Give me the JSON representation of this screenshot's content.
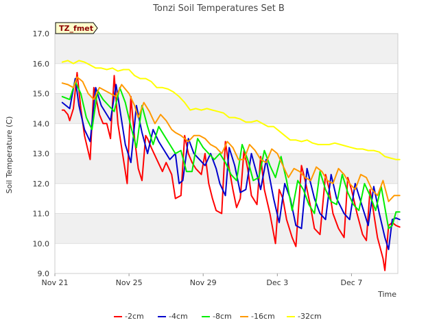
{
  "chart_data": {
    "type": "line",
    "title": "Tonzi Soil Temperatures Set B",
    "xlabel": "Time",
    "ylabel": "Soil Temperature (C)",
    "site_label": "TZ_fmet",
    "x_ticks": [
      "Nov 21",
      "Nov 25",
      "Nov 29",
      "Dec 3",
      "Dec 7"
    ],
    "x_tick_days": [
      0,
      4,
      8,
      12,
      16
    ],
    "xlim": [
      0,
      18.5
    ],
    "y_ticks": [
      "9.0",
      "10.0",
      "11.0",
      "12.0",
      "13.0",
      "14.0",
      "15.0",
      "16.0",
      "17.0"
    ],
    "ylim": [
      9.0,
      17.0
    ],
    "band_color": "#f0f0f0",
    "legend_position": "bottom",
    "series": [
      {
        "name": "-2cm",
        "color": "#ff0000",
        "x": [
          0.4,
          0.5,
          0.7,
          0.8,
          1.0,
          1.2,
          1.4,
          1.6,
          1.9,
          2.1,
          2.4,
          2.6,
          2.8,
          3.0,
          3.2,
          3.4,
          3.7,
          3.9,
          4.1,
          4.3,
          4.5,
          4.7,
          4.9,
          5.0,
          5.2,
          5.5,
          5.8,
          6.0,
          6.3,
          6.5,
          6.8,
          7.0,
          7.2,
          7.4,
          7.6,
          7.9,
          8.1,
          8.3,
          8.5,
          8.7,
          9.0,
          9.2,
          9.4,
          9.6,
          9.8,
          10.0,
          10.2,
          10.4,
          10.6,
          10.9,
          11.1,
          11.3,
          11.6,
          11.9,
          12.1,
          12.3,
          12.5,
          12.8,
          13.0,
          13.3,
          13.5,
          13.8,
          14.0,
          14.3,
          14.6,
          14.8,
          15.0,
          15.3,
          15.6,
          15.8,
          16.0,
          16.3,
          16.6,
          16.8,
          17.0,
          17.2,
          17.4,
          17.7,
          17.8,
          18.0,
          18.2,
          18.4,
          18.6
        ],
        "y": [
          14.45,
          14.45,
          14.3,
          14.1,
          14.5,
          15.7,
          14.5,
          13.6,
          12.8,
          15.2,
          14.3,
          14.0,
          14.0,
          13.5,
          15.6,
          14.0,
          12.8,
          12.0,
          14.9,
          13.5,
          12.5,
          12.1,
          13.6,
          13.5,
          13.2,
          12.8,
          12.4,
          12.7,
          12.3,
          11.5,
          11.6,
          13.6,
          13.0,
          12.7,
          12.5,
          12.3,
          13.0,
          12.0,
          11.5,
          11.1,
          11.0,
          13.4,
          12.5,
          11.8,
          11.2,
          11.5,
          13.1,
          12.5,
          11.6,
          11.3,
          12.9,
          11.8,
          11.0,
          10.0,
          11.8,
          11.5,
          10.8,
          10.2,
          9.9,
          12.6,
          12.1,
          11.2,
          10.5,
          10.3,
          12.3,
          11.8,
          11.0,
          10.5,
          10.2,
          12.2,
          11.8,
          11.0,
          10.3,
          10.1,
          11.8,
          11.0,
          10.2,
          9.5,
          9.1,
          10.6,
          10.7,
          10.6,
          10.55
        ]
      },
      {
        "name": "-4cm",
        "color": "#0000cc",
        "x": [
          0.4,
          0.6,
          0.8,
          1.1,
          1.3,
          1.6,
          1.9,
          2.2,
          2.5,
          2.8,
          3.0,
          3.3,
          3.5,
          3.8,
          4.1,
          4.4,
          4.7,
          5.0,
          5.3,
          5.6,
          5.9,
          6.2,
          6.5,
          6.7,
          6.9,
          7.2,
          7.5,
          7.8,
          8.1,
          8.4,
          8.7,
          8.9,
          9.2,
          9.4,
          9.7,
          10.0,
          10.3,
          10.6,
          10.9,
          11.1,
          11.4,
          11.8,
          12.1,
          12.4,
          12.7,
          13.0,
          13.3,
          13.6,
          14.0,
          14.3,
          14.6,
          14.9,
          15.2,
          15.6,
          15.9,
          16.2,
          16.6,
          16.9,
          17.2,
          17.5,
          17.8,
          18.0,
          18.2,
          18.4,
          18.6
        ],
        "y": [
          14.7,
          14.6,
          14.5,
          15.5,
          14.6,
          13.8,
          13.4,
          15.2,
          14.6,
          14.3,
          14.1,
          15.3,
          14.5,
          13.3,
          12.7,
          14.6,
          13.7,
          13.0,
          13.8,
          13.4,
          13.1,
          12.8,
          13.0,
          12.0,
          12.1,
          13.5,
          13.0,
          12.8,
          12.6,
          13.0,
          12.5,
          12.0,
          11.6,
          13.2,
          12.6,
          11.7,
          11.8,
          13.0,
          12.3,
          11.8,
          12.8,
          11.5,
          10.7,
          12.0,
          11.5,
          10.6,
          10.5,
          12.5,
          11.5,
          11.0,
          10.8,
          12.3,
          11.5,
          11.0,
          10.8,
          12.0,
          11.2,
          10.6,
          11.9,
          11.0,
          10.2,
          9.8,
          10.8,
          10.85,
          10.8
        ]
      },
      {
        "name": "-8cm",
        "color": "#00ee00",
        "x": [
          0.4,
          0.6,
          0.8,
          1.1,
          1.4,
          1.7,
          2.0,
          2.3,
          2.6,
          2.9,
          3.2,
          3.5,
          3.8,
          4.1,
          4.4,
          4.7,
          5.0,
          5.3,
          5.6,
          5.9,
          6.2,
          6.5,
          6.8,
          7.1,
          7.4,
          7.7,
          8.0,
          8.3,
          8.6,
          8.9,
          9.2,
          9.5,
          9.8,
          10.1,
          10.4,
          10.7,
          11.0,
          11.3,
          11.6,
          11.9,
          12.2,
          12.5,
          12.8,
          13.1,
          13.4,
          13.7,
          14.0,
          14.3,
          14.6,
          14.9,
          15.2,
          15.5,
          15.8,
          16.1,
          16.4,
          16.7,
          17.0,
          17.3,
          17.6,
          17.8,
          18.0,
          18.2,
          18.4,
          18.6
        ],
        "y": [
          14.9,
          14.85,
          14.8,
          15.4,
          15.0,
          14.2,
          13.8,
          15.1,
          14.8,
          14.6,
          14.4,
          15.2,
          14.7,
          13.9,
          13.2,
          14.6,
          13.9,
          13.3,
          13.9,
          13.6,
          13.3,
          13.0,
          13.1,
          12.4,
          12.4,
          13.5,
          13.2,
          13.0,
          12.8,
          13.0,
          12.7,
          12.3,
          12.1,
          13.3,
          12.8,
          12.1,
          12.2,
          13.1,
          12.6,
          12.2,
          12.9,
          12.1,
          11.1,
          12.1,
          11.8,
          11.3,
          11.0,
          12.4,
          11.8,
          11.4,
          11.3,
          12.3,
          11.7,
          11.3,
          11.1,
          12.0,
          11.6,
          11.1,
          11.9,
          11.2,
          10.5,
          10.6,
          11.05,
          11.05
        ]
      },
      {
        "name": "-16cm",
        "color": "#ff9900",
        "x": [
          0.4,
          0.7,
          1.0,
          1.2,
          1.5,
          1.8,
          2.1,
          2.4,
          2.7,
          3.0,
          3.3,
          3.6,
          4.0,
          4.3,
          4.5,
          4.8,
          5.1,
          5.4,
          5.7,
          6.0,
          6.3,
          6.5,
          6.8,
          7.0,
          7.2,
          7.5,
          7.8,
          8.1,
          8.4,
          8.7,
          9.0,
          9.3,
          9.6,
          9.9,
          10.2,
          10.5,
          10.8,
          11.1,
          11.4,
          11.7,
          12.0,
          12.3,
          12.6,
          12.9,
          13.2,
          13.5,
          13.8,
          14.1,
          14.4,
          14.7,
          15.0,
          15.3,
          15.6,
          15.9,
          16.2,
          16.5,
          16.8,
          17.1,
          17.4,
          17.7,
          18.0,
          18.3,
          18.6
        ],
        "y": [
          15.35,
          15.3,
          15.2,
          15.55,
          15.4,
          15.0,
          14.8,
          15.2,
          15.1,
          15.0,
          14.9,
          15.3,
          15.0,
          14.6,
          14.2,
          14.7,
          14.4,
          14.0,
          14.3,
          14.1,
          13.8,
          13.7,
          13.6,
          13.5,
          13.4,
          13.6,
          13.6,
          13.5,
          13.3,
          13.2,
          13.0,
          13.4,
          13.2,
          12.8,
          12.8,
          13.3,
          13.1,
          12.8,
          12.7,
          13.15,
          13.0,
          12.6,
          12.2,
          12.5,
          12.4,
          12.2,
          12.1,
          12.55,
          12.4,
          12.1,
          12.0,
          12.5,
          12.3,
          12.0,
          11.8,
          12.3,
          12.2,
          11.8,
          11.6,
          12.1,
          11.4,
          11.6,
          11.6
        ]
      },
      {
        "name": "-32cm",
        "color": "#ffff00",
        "x": [
          0.4,
          0.7,
          1.0,
          1.3,
          1.6,
          1.9,
          2.2,
          2.5,
          2.8,
          3.1,
          3.4,
          3.7,
          4.0,
          4.3,
          4.6,
          4.9,
          5.2,
          5.5,
          5.8,
          6.1,
          6.4,
          6.7,
          7.0,
          7.3,
          7.6,
          7.9,
          8.2,
          8.5,
          8.8,
          9.1,
          9.4,
          9.7,
          10.0,
          10.3,
          10.6,
          10.9,
          11.2,
          11.5,
          11.8,
          12.1,
          12.4,
          12.7,
          13.0,
          13.3,
          13.6,
          13.9,
          14.2,
          14.5,
          14.8,
          15.1,
          15.4,
          15.7,
          16.0,
          16.3,
          16.6,
          16.9,
          17.2,
          17.5,
          17.8,
          18.1,
          18.4,
          18.6
        ],
        "y": [
          16.05,
          16.1,
          16.0,
          16.1,
          16.05,
          15.95,
          15.85,
          15.85,
          15.8,
          15.85,
          15.75,
          15.8,
          15.8,
          15.6,
          15.5,
          15.5,
          15.4,
          15.2,
          15.2,
          15.15,
          15.05,
          14.9,
          14.7,
          14.45,
          14.5,
          14.45,
          14.5,
          14.45,
          14.4,
          14.35,
          14.2,
          14.2,
          14.15,
          14.05,
          14.05,
          14.1,
          14.0,
          13.9,
          13.9,
          13.75,
          13.6,
          13.45,
          13.45,
          13.4,
          13.45,
          13.35,
          13.3,
          13.3,
          13.3,
          13.35,
          13.3,
          13.25,
          13.2,
          13.15,
          13.15,
          13.1,
          13.1,
          13.05,
          12.9,
          12.85,
          12.8,
          12.8
        ]
      }
    ]
  }
}
